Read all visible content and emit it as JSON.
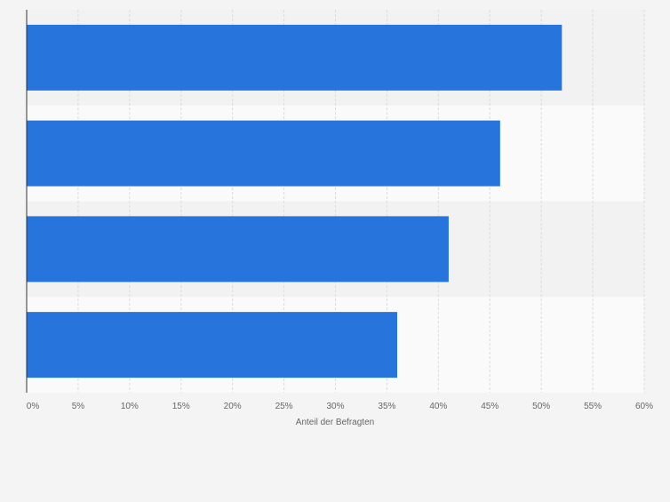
{
  "chart_data": {
    "type": "bar",
    "orientation": "horizontal",
    "title": "",
    "categories": [
      "",
      "",
      "",
      ""
    ],
    "values": [
      52,
      46,
      41,
      36
    ],
    "value_unit": "%",
    "xlabel": "Anteil der Befragten",
    "ylabel": "",
    "xlim": [
      0,
      60
    ],
    "x_ticks": [
      {
        "value": 0,
        "label": "0%"
      },
      {
        "value": 5,
        "label": "5%"
      },
      {
        "value": 10,
        "label": "10%"
      },
      {
        "value": 15,
        "label": "15%"
      },
      {
        "value": 20,
        "label": "20%"
      },
      {
        "value": 25,
        "label": "25%"
      },
      {
        "value": 30,
        "label": "30%"
      },
      {
        "value": 35,
        "label": "35%"
      },
      {
        "value": 40,
        "label": "40%"
      },
      {
        "value": 45,
        "label": "45%"
      },
      {
        "value": 50,
        "label": "50%"
      },
      {
        "value": 55,
        "label": "55%"
      },
      {
        "value": 60,
        "label": "60%"
      }
    ],
    "grid": "vertical-dashed",
    "legend": "none",
    "colors": {
      "bar": "#2775dc",
      "background": "#f4f4f4",
      "band_light": "#fafafa",
      "band_dark": "#f2f2f2",
      "grid": "#dcdcdc",
      "axis": "#333333",
      "tick_label": "#666666"
    }
  }
}
